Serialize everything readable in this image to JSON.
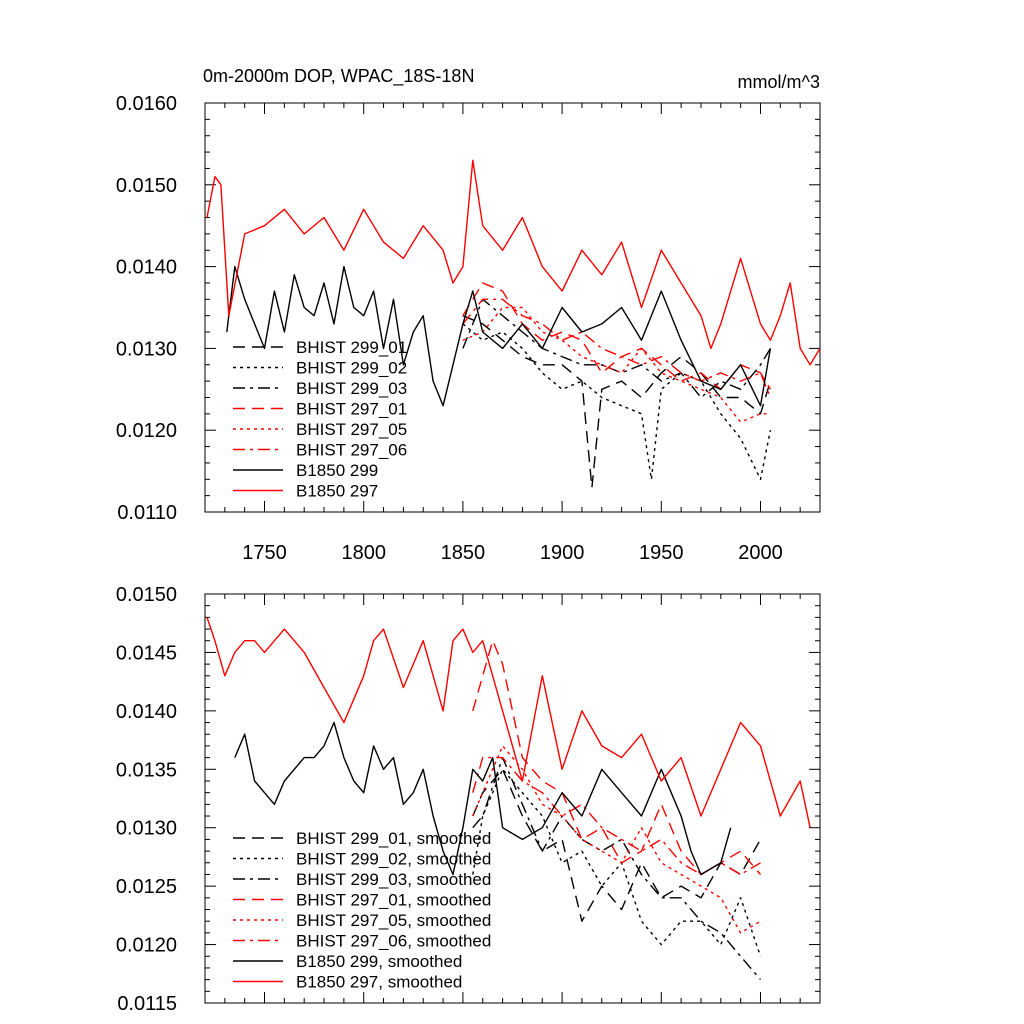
{
  "chart_data": [
    {
      "type": "line",
      "title": "0m-2000m DOP, WPAC_18S-18N",
      "units": "mmol/m^3",
      "xlim": [
        1720,
        2030
      ],
      "ylim": [
        0.011,
        0.016
      ],
      "x_ticks": [
        1750,
        1800,
        1850,
        1900,
        1950,
        2000
      ],
      "y_ticks": [
        "0.0160",
        "0.0150",
        "0.0140",
        "0.0130",
        "0.0120",
        "0.0110"
      ],
      "legend_position": "lower-left",
      "series": [
        {
          "name": "BHIST 299_01",
          "color": "#000000",
          "dash": "dashed",
          "x": [
            1850,
            1860,
            1870,
            1880,
            1890,
            1900,
            1910,
            1915,
            1920,
            1930,
            1940,
            1950,
            1960,
            1970,
            1980,
            1990,
            2000,
            2005
          ],
          "y": [
            0.0134,
            0.0133,
            0.0131,
            0.0129,
            0.0128,
            0.0128,
            0.0126,
            0.0113,
            0.0125,
            0.0126,
            0.0124,
            0.0127,
            0.0129,
            0.0127,
            0.0124,
            0.0124,
            0.0122,
            0.0126
          ]
        },
        {
          "name": "BHIST 299_02",
          "color": "#000000",
          "dash": "dotted",
          "x": [
            1850,
            1860,
            1870,
            1880,
            1890,
            1900,
            1910,
            1920,
            1930,
            1940,
            1945,
            1950,
            1960,
            1970,
            1980,
            1990,
            2000,
            2005
          ],
          "y": [
            0.0133,
            0.0131,
            0.0132,
            0.013,
            0.0127,
            0.0125,
            0.0126,
            0.0124,
            0.0123,
            0.0122,
            0.0114,
            0.0125,
            0.0127,
            0.0126,
            0.0122,
            0.0119,
            0.0114,
            0.012
          ]
        },
        {
          "name": "BHIST 299_03",
          "color": "#000000",
          "dash": "dashdot",
          "x": [
            1850,
            1860,
            1870,
            1880,
            1890,
            1900,
            1910,
            1920,
            1930,
            1940,
            1950,
            1960,
            1970,
            1980,
            1990,
            2000,
            2005
          ],
          "y": [
            0.013,
            0.0136,
            0.0134,
            0.0132,
            0.013,
            0.0129,
            0.0128,
            0.0128,
            0.0127,
            0.0128,
            0.0126,
            0.0127,
            0.0124,
            0.0126,
            0.0125,
            0.0128,
            0.013
          ]
        },
        {
          "name": "BHIST 297_01",
          "color": "#ff0000",
          "dash": "dashed",
          "x": [
            1850,
            1860,
            1870,
            1880,
            1890,
            1900,
            1910,
            1920,
            1930,
            1940,
            1950,
            1960,
            1970,
            1980,
            1990,
            2000,
            2005
          ],
          "y": [
            0.0134,
            0.0138,
            0.0137,
            0.0133,
            0.0131,
            0.0132,
            0.0131,
            0.0127,
            0.0129,
            0.013,
            0.0128,
            0.0126,
            0.0127,
            0.0125,
            0.0128,
            0.0127,
            0.0125
          ]
        },
        {
          "name": "BHIST 297_05",
          "color": "#ff0000",
          "dash": "dotted",
          "x": [
            1850,
            1860,
            1870,
            1880,
            1890,
            1900,
            1910,
            1920,
            1930,
            1940,
            1950,
            1960,
            1970,
            1980,
            1990,
            2000,
            2005
          ],
          "y": [
            0.0131,
            0.0132,
            0.0135,
            0.0135,
            0.0132,
            0.0131,
            0.0129,
            0.0128,
            0.0127,
            0.013,
            0.0127,
            0.0126,
            0.0125,
            0.0124,
            0.0121,
            0.0122,
            0.0122
          ]
        },
        {
          "name": "BHIST 297_06",
          "color": "#ff0000",
          "dash": "dashdot",
          "x": [
            1850,
            1860,
            1870,
            1880,
            1890,
            1900,
            1910,
            1920,
            1930,
            1940,
            1950,
            1960,
            1970,
            1980,
            1990,
            2000,
            2005
          ],
          "y": [
            0.0133,
            0.0136,
            0.0136,
            0.0134,
            0.0133,
            0.0131,
            0.0132,
            0.013,
            0.0129,
            0.0128,
            0.0129,
            0.0127,
            0.0126,
            0.0127,
            0.0126,
            0.0127,
            0.0124
          ]
        },
        {
          "name": "B1850 299",
          "color": "#000000",
          "dash": "solid",
          "x": [
            1731,
            1735,
            1740,
            1745,
            1750,
            1755,
            1760,
            1765,
            1770,
            1775,
            1780,
            1785,
            1790,
            1795,
            1800,
            1805,
            1810,
            1815,
            1820,
            1825,
            1830,
            1835,
            1840,
            1845,
            1850,
            1855,
            1860,
            1870,
            1880,
            1890,
            1900,
            1910,
            1920,
            1930,
            1940,
            1950,
            1960,
            1970,
            1980,
            1990,
            2000,
            2005
          ],
          "y": [
            0.0132,
            0.014,
            0.0136,
            0.0133,
            0.013,
            0.0137,
            0.0132,
            0.0139,
            0.0135,
            0.0134,
            0.0138,
            0.0133,
            0.014,
            0.0135,
            0.0134,
            0.0137,
            0.013,
            0.0136,
            0.0128,
            0.0132,
            0.0134,
            0.0126,
            0.0123,
            0.0128,
            0.0133,
            0.0137,
            0.0132,
            0.013,
            0.0133,
            0.013,
            0.0135,
            0.0132,
            0.0133,
            0.0135,
            0.0131,
            0.0137,
            0.0131,
            0.0126,
            0.0125,
            0.0128,
            0.0123,
            0.013
          ]
        },
        {
          "name": "B1850 297",
          "color": "#ff0000",
          "dash": "solid",
          "x": [
            1721,
            1725,
            1728,
            1732,
            1740,
            1750,
            1760,
            1770,
            1780,
            1790,
            1800,
            1810,
            1820,
            1830,
            1840,
            1845,
            1850,
            1855,
            1860,
            1870,
            1880,
            1890,
            1900,
            1910,
            1920,
            1930,
            1940,
            1950,
            1960,
            1970,
            1975,
            1980,
            1990,
            2000,
            2005,
            2010,
            2015,
            2020,
            2025,
            2030
          ],
          "y": [
            0.0146,
            0.0151,
            0.015,
            0.0134,
            0.0144,
            0.0145,
            0.0147,
            0.0144,
            0.0146,
            0.0142,
            0.0147,
            0.0143,
            0.0141,
            0.0145,
            0.0142,
            0.0138,
            0.014,
            0.0153,
            0.0145,
            0.0142,
            0.0146,
            0.014,
            0.0137,
            0.0142,
            0.0139,
            0.0143,
            0.0135,
            0.0142,
            0.0138,
            0.0134,
            0.013,
            0.0133,
            0.0141,
            0.0133,
            0.0131,
            0.0134,
            0.0138,
            0.013,
            0.0128,
            0.013
          ]
        }
      ]
    },
    {
      "type": "line",
      "xlim": [
        1720,
        2030
      ],
      "ylim": [
        0.0115,
        0.015
      ],
      "y_ticks": [
        "0.0150",
        "0.0145",
        "0.0140",
        "0.0135",
        "0.0130",
        "0.0125",
        "0.0120",
        "0.0115"
      ],
      "legend_position": "lower-left",
      "series": [
        {
          "name": "BHIST 299_01, smoothed",
          "color": "#000000",
          "dash": "dashed",
          "x": [
            1855,
            1860,
            1870,
            1880,
            1890,
            1900,
            1910,
            1920,
            1930,
            1940,
            1950,
            1960,
            1970,
            1980,
            1990,
            2000
          ],
          "y": [
            0.0131,
            0.0133,
            0.0135,
            0.0131,
            0.0128,
            0.0129,
            0.0122,
            0.0125,
            0.0123,
            0.0127,
            0.0124,
            0.0125,
            0.0124,
            0.0127,
            0.0126,
            0.0129
          ]
        },
        {
          "name": "BHIST 299_02, smoothed",
          "color": "#000000",
          "dash": "dotted",
          "x": [
            1855,
            1860,
            1870,
            1880,
            1890,
            1900,
            1910,
            1920,
            1930,
            1940,
            1950,
            1960,
            1970,
            1980,
            1990,
            2000
          ],
          "y": [
            0.0126,
            0.0131,
            0.0135,
            0.0133,
            0.0131,
            0.0127,
            0.0128,
            0.0125,
            0.0127,
            0.0122,
            0.012,
            0.0122,
            0.0122,
            0.012,
            0.0124,
            0.0119
          ]
        },
        {
          "name": "BHIST 299_03, smoothed",
          "color": "#000000",
          "dash": "dashdot",
          "x": [
            1855,
            1860,
            1870,
            1880,
            1890,
            1900,
            1910,
            1920,
            1930,
            1940,
            1950,
            1960,
            1970,
            1980,
            1990,
            2000
          ],
          "y": [
            0.013,
            0.0131,
            0.0136,
            0.0132,
            0.0128,
            0.0131,
            0.0129,
            0.0128,
            0.0129,
            0.0126,
            0.0124,
            0.0124,
            0.0122,
            0.0121,
            0.0119,
            0.0117
          ]
        },
        {
          "name": "BHIST 297_01, smoothed",
          "color": "#ff0000",
          "dash": "dashed",
          "x": [
            1855,
            1860,
            1865,
            1870,
            1880,
            1890,
            1900,
            1910,
            1920,
            1930,
            1940,
            1950,
            1960,
            1970,
            1980,
            1990,
            2000
          ],
          "y": [
            0.014,
            0.0143,
            0.0146,
            0.0144,
            0.0136,
            0.0134,
            0.0133,
            0.0129,
            0.013,
            0.0127,
            0.0128,
            0.0132,
            0.0128,
            0.0126,
            0.0127,
            0.0128,
            0.0126
          ]
        },
        {
          "name": "BHIST 297_05, smoothed",
          "color": "#ff0000",
          "dash": "dotted",
          "x": [
            1855,
            1860,
            1870,
            1880,
            1890,
            1900,
            1910,
            1920,
            1930,
            1940,
            1950,
            1960,
            1970,
            1980,
            1990,
            2000
          ],
          "y": [
            0.0131,
            0.0133,
            0.0137,
            0.0135,
            0.0132,
            0.0131,
            0.0129,
            0.0128,
            0.0127,
            0.013,
            0.0127,
            0.0126,
            0.0125,
            0.0124,
            0.0121,
            0.0122
          ]
        },
        {
          "name": "BHIST 297_06, smoothed",
          "color": "#ff0000",
          "dash": "dashdot",
          "x": [
            1855,
            1860,
            1870,
            1880,
            1890,
            1900,
            1910,
            1920,
            1930,
            1940,
            1950,
            1960,
            1970,
            1980,
            1990,
            2000
          ],
          "y": [
            0.0133,
            0.0136,
            0.0136,
            0.0134,
            0.0133,
            0.0131,
            0.0132,
            0.013,
            0.0129,
            0.0128,
            0.0129,
            0.0127,
            0.0126,
            0.0127,
            0.0126,
            0.0127
          ]
        },
        {
          "name": "B1850 299, smoothed",
          "color": "#000000",
          "dash": "solid",
          "x": [
            1735,
            1740,
            1745,
            1750,
            1755,
            1760,
            1765,
            1770,
            1775,
            1780,
            1785,
            1790,
            1795,
            1800,
            1805,
            1810,
            1815,
            1820,
            1825,
            1830,
            1835,
            1840,
            1845,
            1850,
            1855,
            1860,
            1865,
            1870,
            1880,
            1890,
            1900,
            1910,
            1920,
            1930,
            1940,
            1950,
            1960,
            1965,
            1970,
            1980,
            1985
          ],
          "y": [
            0.0136,
            0.0138,
            0.0134,
            0.0133,
            0.0132,
            0.0134,
            0.0135,
            0.0136,
            0.0136,
            0.0137,
            0.0139,
            0.0136,
            0.0134,
            0.0133,
            0.0137,
            0.0135,
            0.0136,
            0.0132,
            0.0133,
            0.0135,
            0.0131,
            0.0128,
            0.0126,
            0.013,
            0.0135,
            0.0134,
            0.0136,
            0.013,
            0.0129,
            0.013,
            0.0133,
            0.0131,
            0.0135,
            0.0133,
            0.0131,
            0.0135,
            0.0131,
            0.0128,
            0.0126,
            0.0127,
            0.013
          ]
        },
        {
          "name": "B1850 297, smoothed",
          "color": "#ff0000",
          "dash": "solid",
          "x": [
            1721,
            1725,
            1730,
            1735,
            1740,
            1745,
            1750,
            1755,
            1760,
            1770,
            1780,
            1790,
            1795,
            1800,
            1805,
            1810,
            1820,
            1830,
            1840,
            1845,
            1850,
            1855,
            1860,
            1870,
            1880,
            1890,
            1900,
            1910,
            1920,
            1930,
            1940,
            1950,
            1960,
            1970,
            1980,
            1990,
            2000,
            2010,
            2020,
            2025
          ],
          "y": [
            0.0148,
            0.0146,
            0.0143,
            0.0145,
            0.0146,
            0.0146,
            0.0145,
            0.0146,
            0.0147,
            0.0145,
            0.0142,
            0.0139,
            0.0141,
            0.0143,
            0.0146,
            0.0147,
            0.0142,
            0.0146,
            0.014,
            0.0146,
            0.0147,
            0.0145,
            0.0146,
            0.014,
            0.0134,
            0.0143,
            0.0135,
            0.014,
            0.0137,
            0.0136,
            0.0138,
            0.0134,
            0.0136,
            0.0131,
            0.0135,
            0.0139,
            0.0137,
            0.0131,
            0.0134,
            0.013
          ]
        }
      ]
    }
  ]
}
